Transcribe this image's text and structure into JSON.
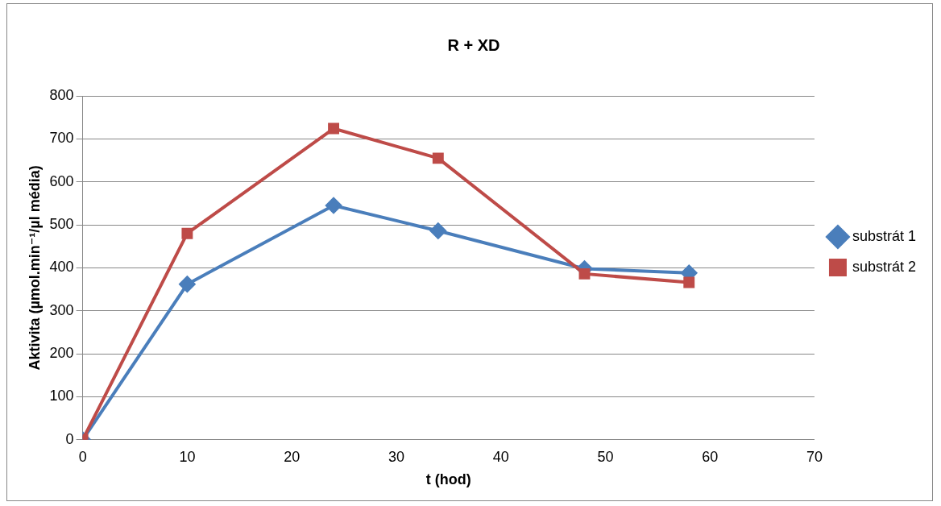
{
  "chart_data": {
    "type": "line",
    "title": "R + XD",
    "xlabel": "t (hod)",
    "ylabel": "Aktivita (µmol.min⁻¹/µl média)",
    "x": [
      0,
      10,
      24,
      34,
      48,
      58
    ],
    "series": [
      {
        "name": "substrát 1",
        "color": "#4a7ebb",
        "marker": "diamond",
        "values": [
          0,
          362,
          545,
          486,
          398,
          388
        ]
      },
      {
        "name": "substrát 2",
        "color": "#be4b48",
        "marker": "square",
        "values": [
          0,
          480,
          724,
          655,
          386,
          366
        ]
      }
    ],
    "xlim": [
      0,
      70
    ],
    "xticks": [
      0,
      10,
      20,
      30,
      40,
      50,
      60,
      70
    ],
    "ylim": [
      0,
      800
    ],
    "yticks": [
      0,
      100,
      200,
      300,
      400,
      500,
      600,
      700,
      800
    ],
    "grid": "y",
    "legend": "right",
    "line_style": "solid"
  }
}
